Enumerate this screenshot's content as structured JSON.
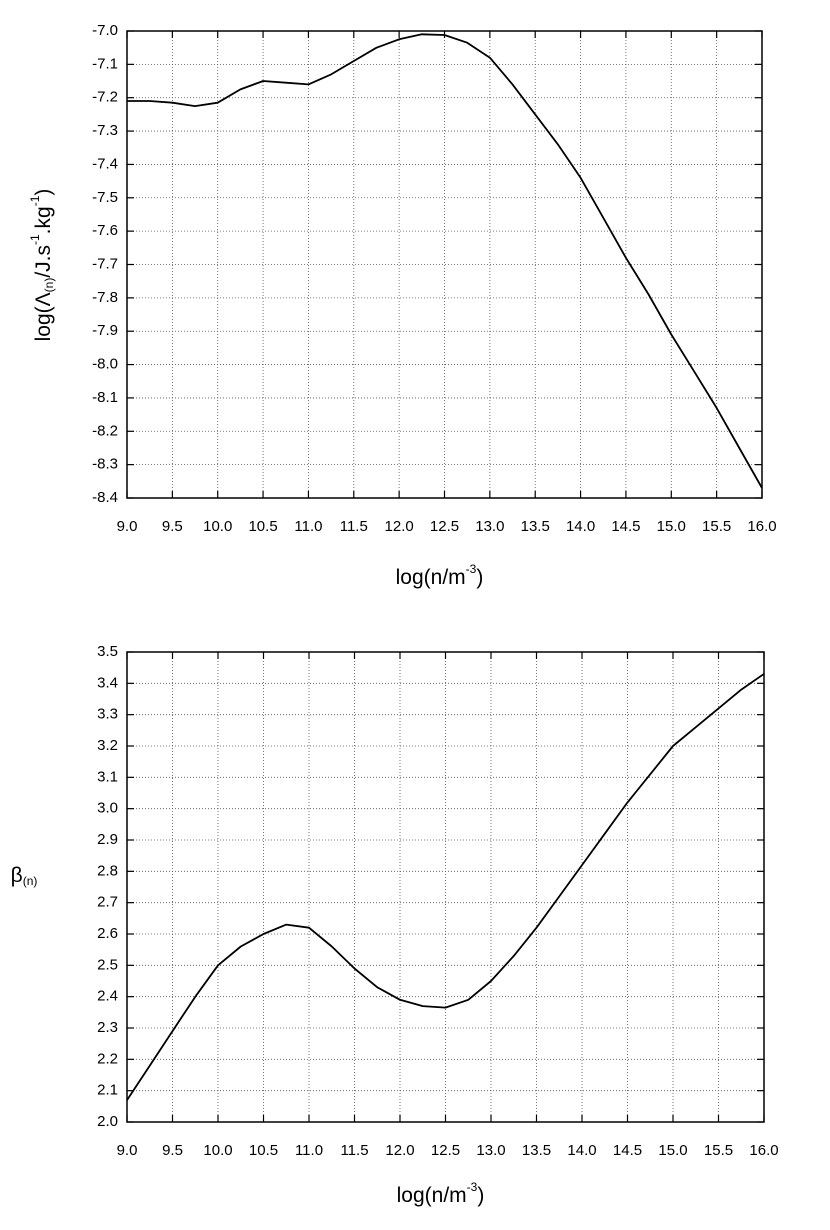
{
  "chart_data": [
    {
      "type": "line",
      "ylabel": [
        "log(Λ",
        "(n)",
        "/J.s",
        "-1",
        ".kg",
        "-1",
        ")"
      ],
      "xlabel": [
        "log(n/m",
        "-3",
        ")"
      ],
      "x": [
        9.0,
        9.25,
        9.5,
        9.75,
        10.0,
        10.25,
        10.5,
        10.75,
        11.0,
        11.25,
        11.5,
        11.75,
        12.0,
        12.25,
        12.5,
        12.75,
        13.0,
        13.25,
        13.5,
        13.75,
        14.0,
        14.25,
        14.5,
        14.75,
        15.0,
        15.25,
        15.5,
        15.75,
        16.0
      ],
      "series": [
        {
          "color": "#000000",
          "values": [
            -7.21,
            -7.21,
            -7.215,
            -7.225,
            -7.215,
            -7.175,
            -7.15,
            -7.155,
            -7.16,
            -7.13,
            -7.09,
            -7.05,
            -7.025,
            -7.01,
            -7.012,
            -7.035,
            -7.08,
            -7.16,
            -7.25,
            -7.34,
            -7.44,
            -7.56,
            -7.68,
            -7.79,
            -7.91,
            -8.02,
            -8.13,
            -8.25,
            -8.37
          ]
        }
      ],
      "xlim": [
        9,
        16
      ],
      "xticks": [
        {
          "value": 9,
          "label": "9.0"
        },
        9.5,
        {
          "value": 10,
          "label": "10.0"
        },
        10.5,
        {
          "value": 11,
          "label": "11.0"
        },
        11.5,
        {
          "value": 12,
          "label": "12.0"
        },
        12.5,
        {
          "value": 13,
          "label": "13.0"
        },
        13.5,
        {
          "value": 14,
          "label": "14.0"
        },
        14.5,
        {
          "value": 15,
          "label": "15.0"
        },
        15.5,
        {
          "value": 16,
          "label": "16.0"
        }
      ],
      "ylim": [
        -8.4,
        -7.0
      ],
      "yticks": [
        {
          "value": -7,
          "label": "-7.0"
        },
        -7.1,
        -7.2,
        -7.3,
        -7.4,
        -7.5,
        -7.6,
        -7.7,
        -7.8,
        -7.9,
        {
          "value": -8,
          "label": "-8.0"
        },
        -8.1,
        -8.2,
        -8.3,
        -8.4
      ],
      "grid": true
    },
    {
      "type": "line",
      "ylabel": [
        "β",
        "(n)"
      ],
      "xlabel": [
        "log(n/m",
        "-3",
        ")"
      ],
      "x": [
        9.0,
        9.25,
        9.5,
        9.75,
        10.0,
        10.25,
        10.5,
        10.75,
        11.0,
        11.25,
        11.5,
        11.75,
        12.0,
        12.25,
        12.5,
        12.75,
        13.0,
        13.25,
        13.5,
        13.75,
        14.0,
        14.25,
        14.5,
        14.75,
        15.0,
        15.25,
        15.5,
        15.75,
        16.0
      ],
      "series": [
        {
          "color": "#000000",
          "values": [
            2.07,
            2.18,
            2.29,
            2.4,
            2.5,
            2.56,
            2.6,
            2.63,
            2.62,
            2.56,
            2.49,
            2.43,
            2.39,
            2.37,
            2.365,
            2.39,
            2.45,
            2.53,
            2.62,
            2.72,
            2.82,
            2.92,
            3.02,
            3.11,
            3.2,
            3.26,
            3.32,
            3.38,
            3.43
          ]
        }
      ],
      "xlim": [
        9,
        16
      ],
      "xticks": [
        {
          "value": 9,
          "label": "9.0"
        },
        9.5,
        {
          "value": 10,
          "label": "10.0"
        },
        10.5,
        {
          "value": 11,
          "label": "11.0"
        },
        11.5,
        {
          "value": 12,
          "label": "12.0"
        },
        12.5,
        {
          "value": 13,
          "label": "13.0"
        },
        13.5,
        {
          "value": 14,
          "label": "14.0"
        },
        14.5,
        {
          "value": 15,
          "label": "15.0"
        },
        15.5,
        {
          "value": 16,
          "label": "16.0"
        }
      ],
      "ylim": [
        2.0,
        3.5
      ],
      "yticks": [
        {
          "value": 2,
          "label": "2.0"
        },
        2.1,
        2.2,
        2.3,
        2.4,
        2.5,
        2.6,
        2.7,
        2.8,
        2.9,
        {
          "value": 3,
          "label": "3.0"
        },
        3.1,
        3.2,
        3.3,
        3.4,
        3.5
      ],
      "grid": true
    }
  ]
}
